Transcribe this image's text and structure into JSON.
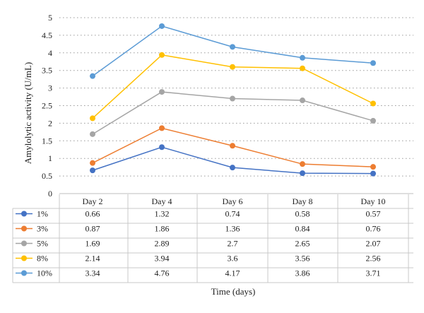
{
  "chart_data": {
    "type": "line",
    "ylabel": "Amylolytic activity (U/mL)",
    "xlabel": "Time (days)",
    "categories": [
      "Day 2",
      "Day 4",
      "Day 6",
      "Day 8",
      "Day 10"
    ],
    "ylim": [
      0,
      5
    ],
    "yticks": [
      "0",
      "0.5",
      "1",
      "1.5",
      "2",
      "2.5",
      "3",
      "3.5",
      "4",
      "4.5",
      "5"
    ],
    "grid": "horizontal dotted",
    "legend": "data table below chart",
    "series": [
      {
        "name": "1%",
        "color": "#4472C4",
        "values": [
          0.66,
          1.32,
          0.74,
          0.58,
          0.57
        ],
        "labels": [
          "0.66",
          "1.32",
          "0.74",
          "0.58",
          "0.57"
        ]
      },
      {
        "name": "3%",
        "color": "#ED7D31",
        "values": [
          0.87,
          1.86,
          1.36,
          0.84,
          0.76
        ],
        "labels": [
          "0.87",
          "1.86",
          "1.36",
          "0.84",
          "0.76"
        ]
      },
      {
        "name": "5%",
        "color": "#A5A5A5",
        "values": [
          1.69,
          2.89,
          2.7,
          2.65,
          2.07
        ],
        "labels": [
          "1.69",
          "2.89",
          "2.7",
          "2.65",
          "2.07"
        ]
      },
      {
        "name": "8%",
        "color": "#FFC000",
        "values": [
          2.14,
          3.94,
          3.6,
          3.56,
          2.56
        ],
        "labels": [
          "2.14",
          "3.94",
          "3.6",
          "3.56",
          "2.56"
        ]
      },
      {
        "name": "10%",
        "color": "#5B9BD5",
        "values": [
          3.34,
          4.76,
          4.17,
          3.86,
          3.71
        ],
        "labels": [
          "3.34",
          "4.76",
          "4.17",
          "3.86",
          "3.71"
        ]
      }
    ]
  }
}
